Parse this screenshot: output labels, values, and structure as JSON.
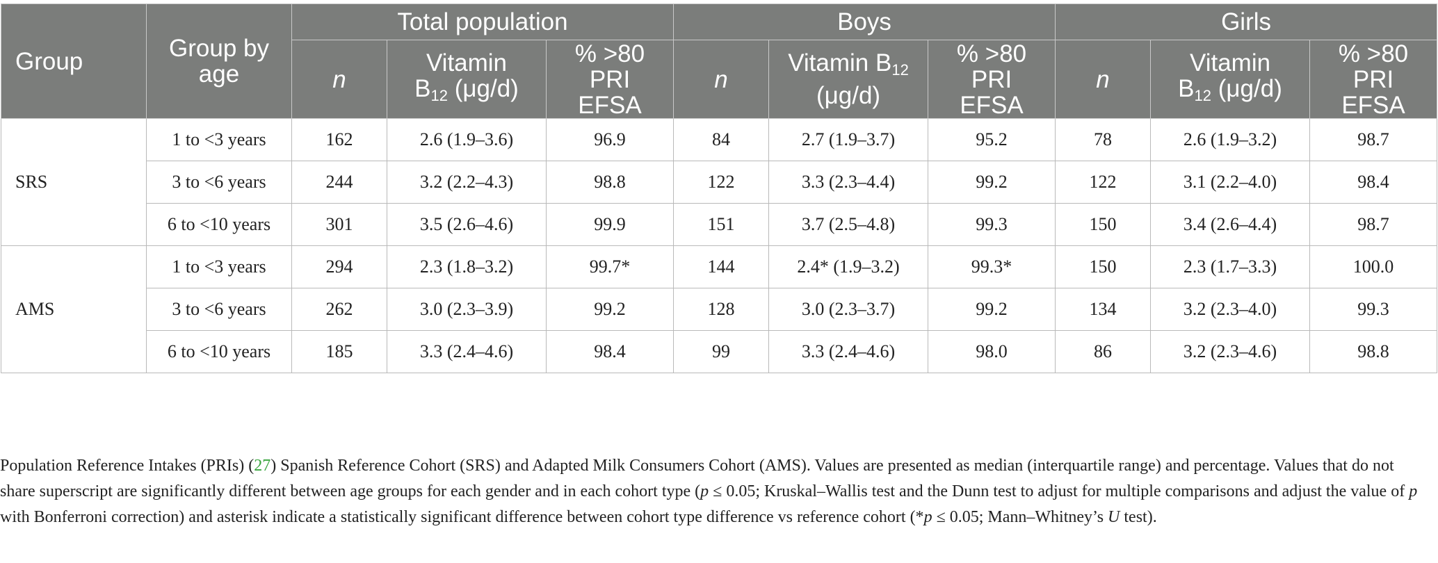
{
  "header": {
    "group": "Group",
    "group_by_age": "Group by age",
    "sections": [
      "Total population",
      "Boys",
      "Girls"
    ],
    "sub": {
      "n": "n",
      "vit_a": "Vitamin",
      "vit_b": "B",
      "vit_sub": "12",
      "vit_unit": " (μg/d)",
      "pri_a": "% >80",
      "pri_b": "PRI",
      "pri_c": "EFSA"
    }
  },
  "rows": [
    {
      "group": "SRS",
      "age": "1 to <3 years",
      "cells": [
        "162",
        "2.6 (1.9–3.6)",
        "96.9",
        "84",
        "2.7 (1.9–3.7)",
        "95.2",
        "78",
        "2.6 (1.9–3.2)",
        "98.7"
      ]
    },
    {
      "age": "3 to <6 years",
      "cells": [
        "244",
        "3.2 (2.2–4.3)",
        "98.8",
        "122",
        "3.3 (2.3–4.4)",
        "99.2",
        "122",
        "3.1 (2.2–4.0)",
        "98.4"
      ]
    },
    {
      "age": "6 to <10 years",
      "cells": [
        "301",
        "3.5 (2.6–4.6)",
        "99.9",
        "151",
        "3.7 (2.5–4.8)",
        "99.3",
        "150",
        "3.4 (2.6–4.4)",
        "98.7"
      ]
    },
    {
      "group": "AMS",
      "age": "1 to <3 years",
      "cells": [
        "294",
        "2.3 (1.8–3.2)",
        "99.7*",
        "144",
        "2.4* (1.9–3.2)",
        "99.3*",
        "150",
        "2.3 (1.7–3.3)",
        "100.0"
      ]
    },
    {
      "age": "3 to <6 years",
      "cells": [
        "262",
        "3.0 (2.3–3.9)",
        "99.2",
        "128",
        "3.0 (2.3–3.7)",
        "99.2",
        "134",
        "3.2 (2.3–4.0)",
        "99.3"
      ]
    },
    {
      "age": "6 to <10 years",
      "cells": [
        "185",
        "3.3 (2.4–4.6)",
        "98.4",
        "99",
        "3.3 (2.4–4.6)",
        "98.0",
        "86",
        "3.2 (2.3–4.6)",
        "98.8"
      ]
    }
  ],
  "footnote": {
    "p1": "Population Reference Intakes (PRIs) (",
    "ref": "27",
    "p2": ") Spanish Reference Cohort (SRS) and Adapted Milk Consumers Cohort (AMS). Values are presented as median (interquartile range) and percentage. Values that do not share superscript are significantly different between age groups for each gender and in each cohort type (",
    "p_var": "p",
    "p3": " ≤ 0.05; Kruskal–Wallis test and the Dunn test to adjust for multiple comparisons and adjust the value of ",
    "p_var2": "p",
    "p4": " with Bonferroni correction) and asterisk indicate a statistically significant difference between cohort type difference vs reference cohort (*",
    "p_var3": "p",
    "p5": " ≤ 0.05; Mann–Whitney’s ",
    "u_var": "U",
    "p6": " test)."
  }
}
